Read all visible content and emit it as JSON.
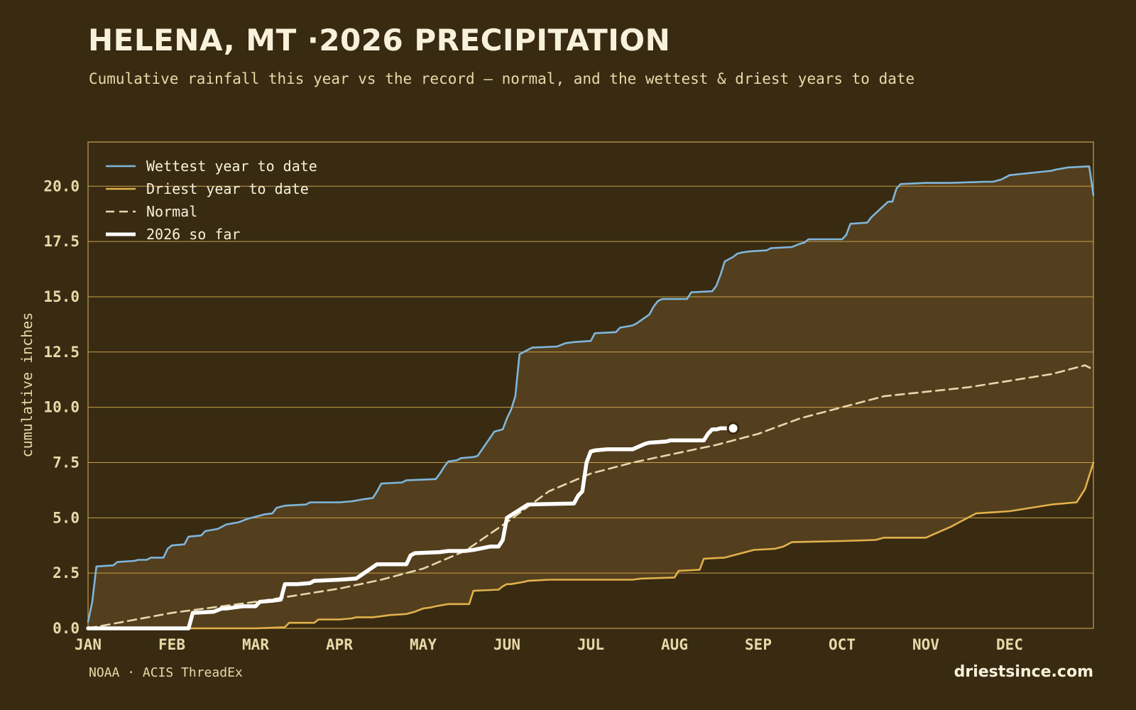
{
  "title": "HELENA, MT ·2026 PRECIPITATION",
  "subtitle": "Cumulative rainfall this year vs the record — normal, and the wettest & driest years to date",
  "footer": {
    "source": "NOAA · ACIS ThreadEx",
    "brand": "driestsince.com"
  },
  "colors": {
    "background": "#382b12",
    "band": "#533f1d",
    "grid": "#c9a04a",
    "wettest": "#7fb6dc",
    "driest": "#e2b04c",
    "normal": "#e8d7ad",
    "current": "#ffffff"
  },
  "chart_data": {
    "type": "line",
    "title": "HELENA, MT ·2026 PRECIPITATION",
    "xlabel": "",
    "ylabel": "cumulative inches",
    "xlim": [
      0,
      12
    ],
    "ylim": [
      0,
      22
    ],
    "grid": true,
    "legend_position": "top-left",
    "x_ticks": [
      {
        "label": "JAN",
        "value": 0
      },
      {
        "label": "FEB",
        "value": 1
      },
      {
        "label": "MAR",
        "value": 2
      },
      {
        "label": "APR",
        "value": 3
      },
      {
        "label": "MAY",
        "value": 4
      },
      {
        "label": "JUN",
        "value": 5
      },
      {
        "label": "JUL",
        "value": 6
      },
      {
        "label": "AUG",
        "value": 7
      },
      {
        "label": "SEP",
        "value": 8
      },
      {
        "label": "OCT",
        "value": 9
      },
      {
        "label": "NOV",
        "value": 10
      },
      {
        "label": "DEC",
        "value": 11
      }
    ],
    "y_ticks": [
      0,
      2.5,
      5,
      7.5,
      10,
      12.5,
      15,
      17.5,
      20
    ],
    "y_tick_labels": [
      "0.0",
      "2.5",
      "5.0",
      "7.5",
      "10.0",
      "12.5",
      "15.0",
      "17.5",
      "20.0"
    ],
    "series": [
      {
        "name": "Wettest year to date",
        "style": "solid",
        "x": [
          0,
          0.05,
          0.1,
          0.3,
          0.35,
          0.55,
          0.6,
          0.7,
          0.75,
          0.9,
          0.95,
          1.0,
          1.15,
          1.2,
          1.35,
          1.4,
          1.55,
          1.65,
          1.8,
          1.9,
          2.0,
          2.1,
          2.2,
          2.25,
          2.35,
          2.6,
          2.65,
          3.0,
          3.15,
          3.3,
          3.4,
          3.45,
          3.5,
          3.75,
          3.8,
          4.15,
          4.2,
          4.25,
          4.3,
          4.4,
          4.45,
          4.6,
          4.65,
          4.85,
          4.95,
          5.0,
          5.05,
          5.1,
          5.15,
          5.2,
          5.3,
          5.6,
          5.7,
          5.8,
          6.0,
          6.05,
          6.3,
          6.35,
          6.5,
          6.55,
          6.7,
          6.75,
          6.8,
          6.85,
          6.9,
          7.15,
          7.2,
          7.45,
          7.5,
          7.55,
          7.6,
          7.7,
          7.75,
          7.8,
          7.9,
          8.1,
          8.15,
          8.4,
          8.5,
          8.55,
          8.6,
          9.0,
          9.05,
          9.1,
          9.3,
          9.35,
          9.55,
          9.6,
          9.65,
          9.7,
          10.0,
          10.3,
          10.7,
          10.8,
          10.9,
          11.0,
          11.5,
          11.55,
          11.7,
          11.95,
          12.0
        ],
        "values": [
          0.3,
          1.2,
          2.8,
          2.85,
          3.0,
          3.05,
          3.1,
          3.1,
          3.2,
          3.2,
          3.6,
          3.75,
          3.8,
          4.15,
          4.2,
          4.4,
          4.5,
          4.7,
          4.8,
          4.95,
          5.05,
          5.15,
          5.2,
          5.45,
          5.55,
          5.6,
          5.7,
          5.7,
          5.75,
          5.85,
          5.9,
          6.2,
          6.55,
          6.6,
          6.7,
          6.75,
          7.0,
          7.3,
          7.55,
          7.6,
          7.7,
          7.75,
          7.8,
          8.9,
          9.0,
          9.5,
          9.9,
          10.5,
          12.4,
          12.5,
          12.7,
          12.75,
          12.9,
          12.95,
          13.0,
          13.35,
          13.4,
          13.6,
          13.7,
          13.8,
          14.2,
          14.55,
          14.8,
          14.9,
          14.9,
          14.9,
          15.2,
          15.25,
          15.5,
          16.0,
          16.6,
          16.8,
          16.95,
          17.0,
          17.05,
          17.1,
          17.2,
          17.25,
          17.4,
          17.45,
          17.6,
          17.6,
          17.8,
          18.3,
          18.35,
          18.6,
          19.3,
          19.3,
          19.9,
          20.1,
          20.15,
          20.15,
          20.2,
          20.2,
          20.3,
          20.5,
          20.7,
          20.75,
          20.85,
          20.9,
          19.6
        ]
      },
      {
        "name": "Driest year to date",
        "style": "solid",
        "x": [
          0,
          1.0,
          1.5,
          2.0,
          2.35,
          2.4,
          2.7,
          2.75,
          3.0,
          3.15,
          3.2,
          3.4,
          3.5,
          3.6,
          3.8,
          3.9,
          4.0,
          4.1,
          4.15,
          4.3,
          4.55,
          4.6,
          4.9,
          4.95,
          5.0,
          5.05,
          5.2,
          5.25,
          5.5,
          6.0,
          6.5,
          6.6,
          7.0,
          7.05,
          7.3,
          7.35,
          7.6,
          7.7,
          7.8,
          7.95,
          8.2,
          8.3,
          8.4,
          9.0,
          9.4,
          9.5,
          10.0,
          10.3,
          10.4,
          10.6,
          11.0,
          11.5,
          11.8,
          11.9,
          12.0
        ],
        "values": [
          0,
          0,
          0,
          0,
          0.05,
          0.25,
          0.25,
          0.4,
          0.4,
          0.45,
          0.5,
          0.5,
          0.55,
          0.6,
          0.65,
          0.75,
          0.9,
          0.95,
          1.0,
          1.1,
          1.1,
          1.7,
          1.75,
          1.9,
          2.0,
          2.0,
          2.1,
          2.15,
          2.2,
          2.2,
          2.2,
          2.25,
          2.3,
          2.6,
          2.65,
          3.15,
          3.2,
          3.3,
          3.4,
          3.55,
          3.6,
          3.7,
          3.9,
          3.95,
          4.0,
          4.1,
          4.1,
          4.6,
          4.8,
          5.2,
          5.3,
          5.6,
          5.7,
          6.3,
          7.5
        ]
      },
      {
        "name": "Normal",
        "style": "dashed",
        "x": [
          0,
          0.5,
          1.0,
          1.5,
          2.0,
          2.5,
          3.0,
          3.5,
          4.0,
          4.5,
          5.0,
          5.5,
          6.0,
          6.5,
          7.0,
          7.5,
          8.0,
          8.5,
          9.0,
          9.5,
          10.0,
          10.5,
          11.0,
          11.5,
          11.9,
          12.0
        ],
        "values": [
          0,
          0.35,
          0.7,
          0.95,
          1.2,
          1.5,
          1.8,
          2.2,
          2.7,
          3.5,
          4.8,
          6.2,
          7.0,
          7.5,
          7.9,
          8.3,
          8.8,
          9.5,
          10.0,
          10.5,
          10.7,
          10.9,
          11.2,
          11.5,
          11.9,
          11.7
        ]
      },
      {
        "name": "2026 so far",
        "style": "bold",
        "x": [
          0,
          0.5,
          1.0,
          1.2,
          1.25,
          1.5,
          1.6,
          1.65,
          1.85,
          2.0,
          2.05,
          2.2,
          2.3,
          2.35,
          2.5,
          2.65,
          2.7,
          3.0,
          3.2,
          3.45,
          3.5,
          3.8,
          3.85,
          3.9,
          4.2,
          4.3,
          4.5,
          4.6,
          4.8,
          4.9,
          4.95,
          5.0,
          5.25,
          5.8,
          5.85,
          5.9,
          5.95,
          6.0,
          6.05,
          6.2,
          6.3,
          6.5,
          6.65,
          6.7,
          6.9,
          6.95,
          7.0,
          7.35,
          7.4,
          7.45,
          7.5,
          7.55,
          7.7
        ],
        "values": [
          0,
          0,
          0,
          0,
          0.7,
          0.75,
          0.9,
          0.9,
          1.0,
          1.0,
          1.2,
          1.25,
          1.3,
          2.0,
          2.0,
          2.05,
          2.15,
          2.2,
          2.25,
          2.9,
          2.9,
          2.9,
          3.3,
          3.4,
          3.45,
          3.5,
          3.5,
          3.55,
          3.7,
          3.7,
          4.0,
          5.0,
          5.6,
          5.65,
          6.0,
          6.2,
          7.5,
          8.0,
          8.05,
          8.1,
          8.1,
          8.1,
          8.35,
          8.4,
          8.45,
          8.5,
          8.5,
          8.5,
          8.8,
          9.0,
          9.0,
          9.05,
          9.05
        ]
      }
    ],
    "current_marker": {
      "x": 7.7,
      "value": 9.05
    }
  }
}
